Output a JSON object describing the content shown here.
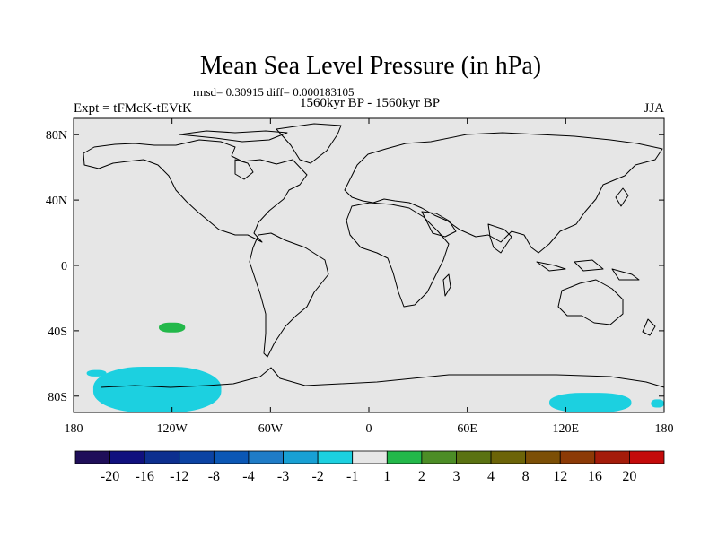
{
  "chart_data": {
    "type": "heatmap",
    "title": "Mean Sea Level Pressure (in hPa)",
    "stats_line": "rmsd= 0.30915 diff= 0.000183105",
    "left_label": "Expt = tFMcK-tEVtK",
    "center_label": "1560kyr BP - 1560kyr BP",
    "right_label": "JJA",
    "lon_range": [
      -180,
      180
    ],
    "lat_range": [
      -90,
      90
    ],
    "x_ticks": [
      {
        "lon": -180,
        "label": "180"
      },
      {
        "lon": -120,
        "label": "120W"
      },
      {
        "lon": -60,
        "label": "60W"
      },
      {
        "lon": 0,
        "label": "0"
      },
      {
        "lon": 60,
        "label": "60E"
      },
      {
        "lon": 120,
        "label": "120E"
      },
      {
        "lon": 180,
        "label": "180"
      }
    ],
    "y_ticks": [
      {
        "lat": 80,
        "label": "80N"
      },
      {
        "lat": 40,
        "label": "40N"
      },
      {
        "lat": 0,
        "label": "0"
      },
      {
        "lat": -40,
        "label": "40S"
      },
      {
        "lat": -80,
        "label": "80S"
      }
    ],
    "colorbar": {
      "colors": [
        "#1f0e59",
        "#10107e",
        "#0d2f8f",
        "#0b43a3",
        "#0b57b5",
        "#1f7cc7",
        "#18a0d4",
        "#1cd0e0",
        "#e6e6e6",
        "#23b84a",
        "#4c8d26",
        "#5a7212",
        "#6c6408",
        "#7c4f06",
        "#8c3a06",
        "#a41c0a",
        "#c40a0a"
      ],
      "labels": [
        "-20",
        "-16",
        "-12",
        "-8",
        "-4",
        "-3",
        "-2",
        "-1",
        "1",
        "2",
        "3",
        "4",
        "8",
        "12",
        "16",
        "20"
      ]
    },
    "anomaly_regions": [
      {
        "name": "pacific-positive",
        "value": 1.5,
        "color": "#23b84a",
        "lon_range": [
          -128,
          -112
        ],
        "lat_range": [
          -41,
          -35
        ]
      },
      {
        "name": "antarctic-pacific-negative",
        "value": -1.5,
        "color": "#1cd0e0",
        "lon_range": [
          -168,
          -90
        ],
        "lat_range": [
          -90,
          -62
        ]
      },
      {
        "name": "southern-ocean-negative-a",
        "value": -1.5,
        "color": "#1cd0e0",
        "lon_range": [
          -172,
          -160
        ],
        "lat_range": [
          -68,
          -64
        ]
      },
      {
        "name": "antarctic-east-negative",
        "value": -1.5,
        "color": "#1cd0e0",
        "lon_range": [
          110,
          160
        ],
        "lat_range": [
          -90,
          -78
        ]
      },
      {
        "name": "antarctic-far-east-negative",
        "value": -1.5,
        "color": "#1cd0e0",
        "lon_range": [
          172,
          180
        ],
        "lat_range": [
          -87,
          -82
        ]
      }
    ]
  }
}
